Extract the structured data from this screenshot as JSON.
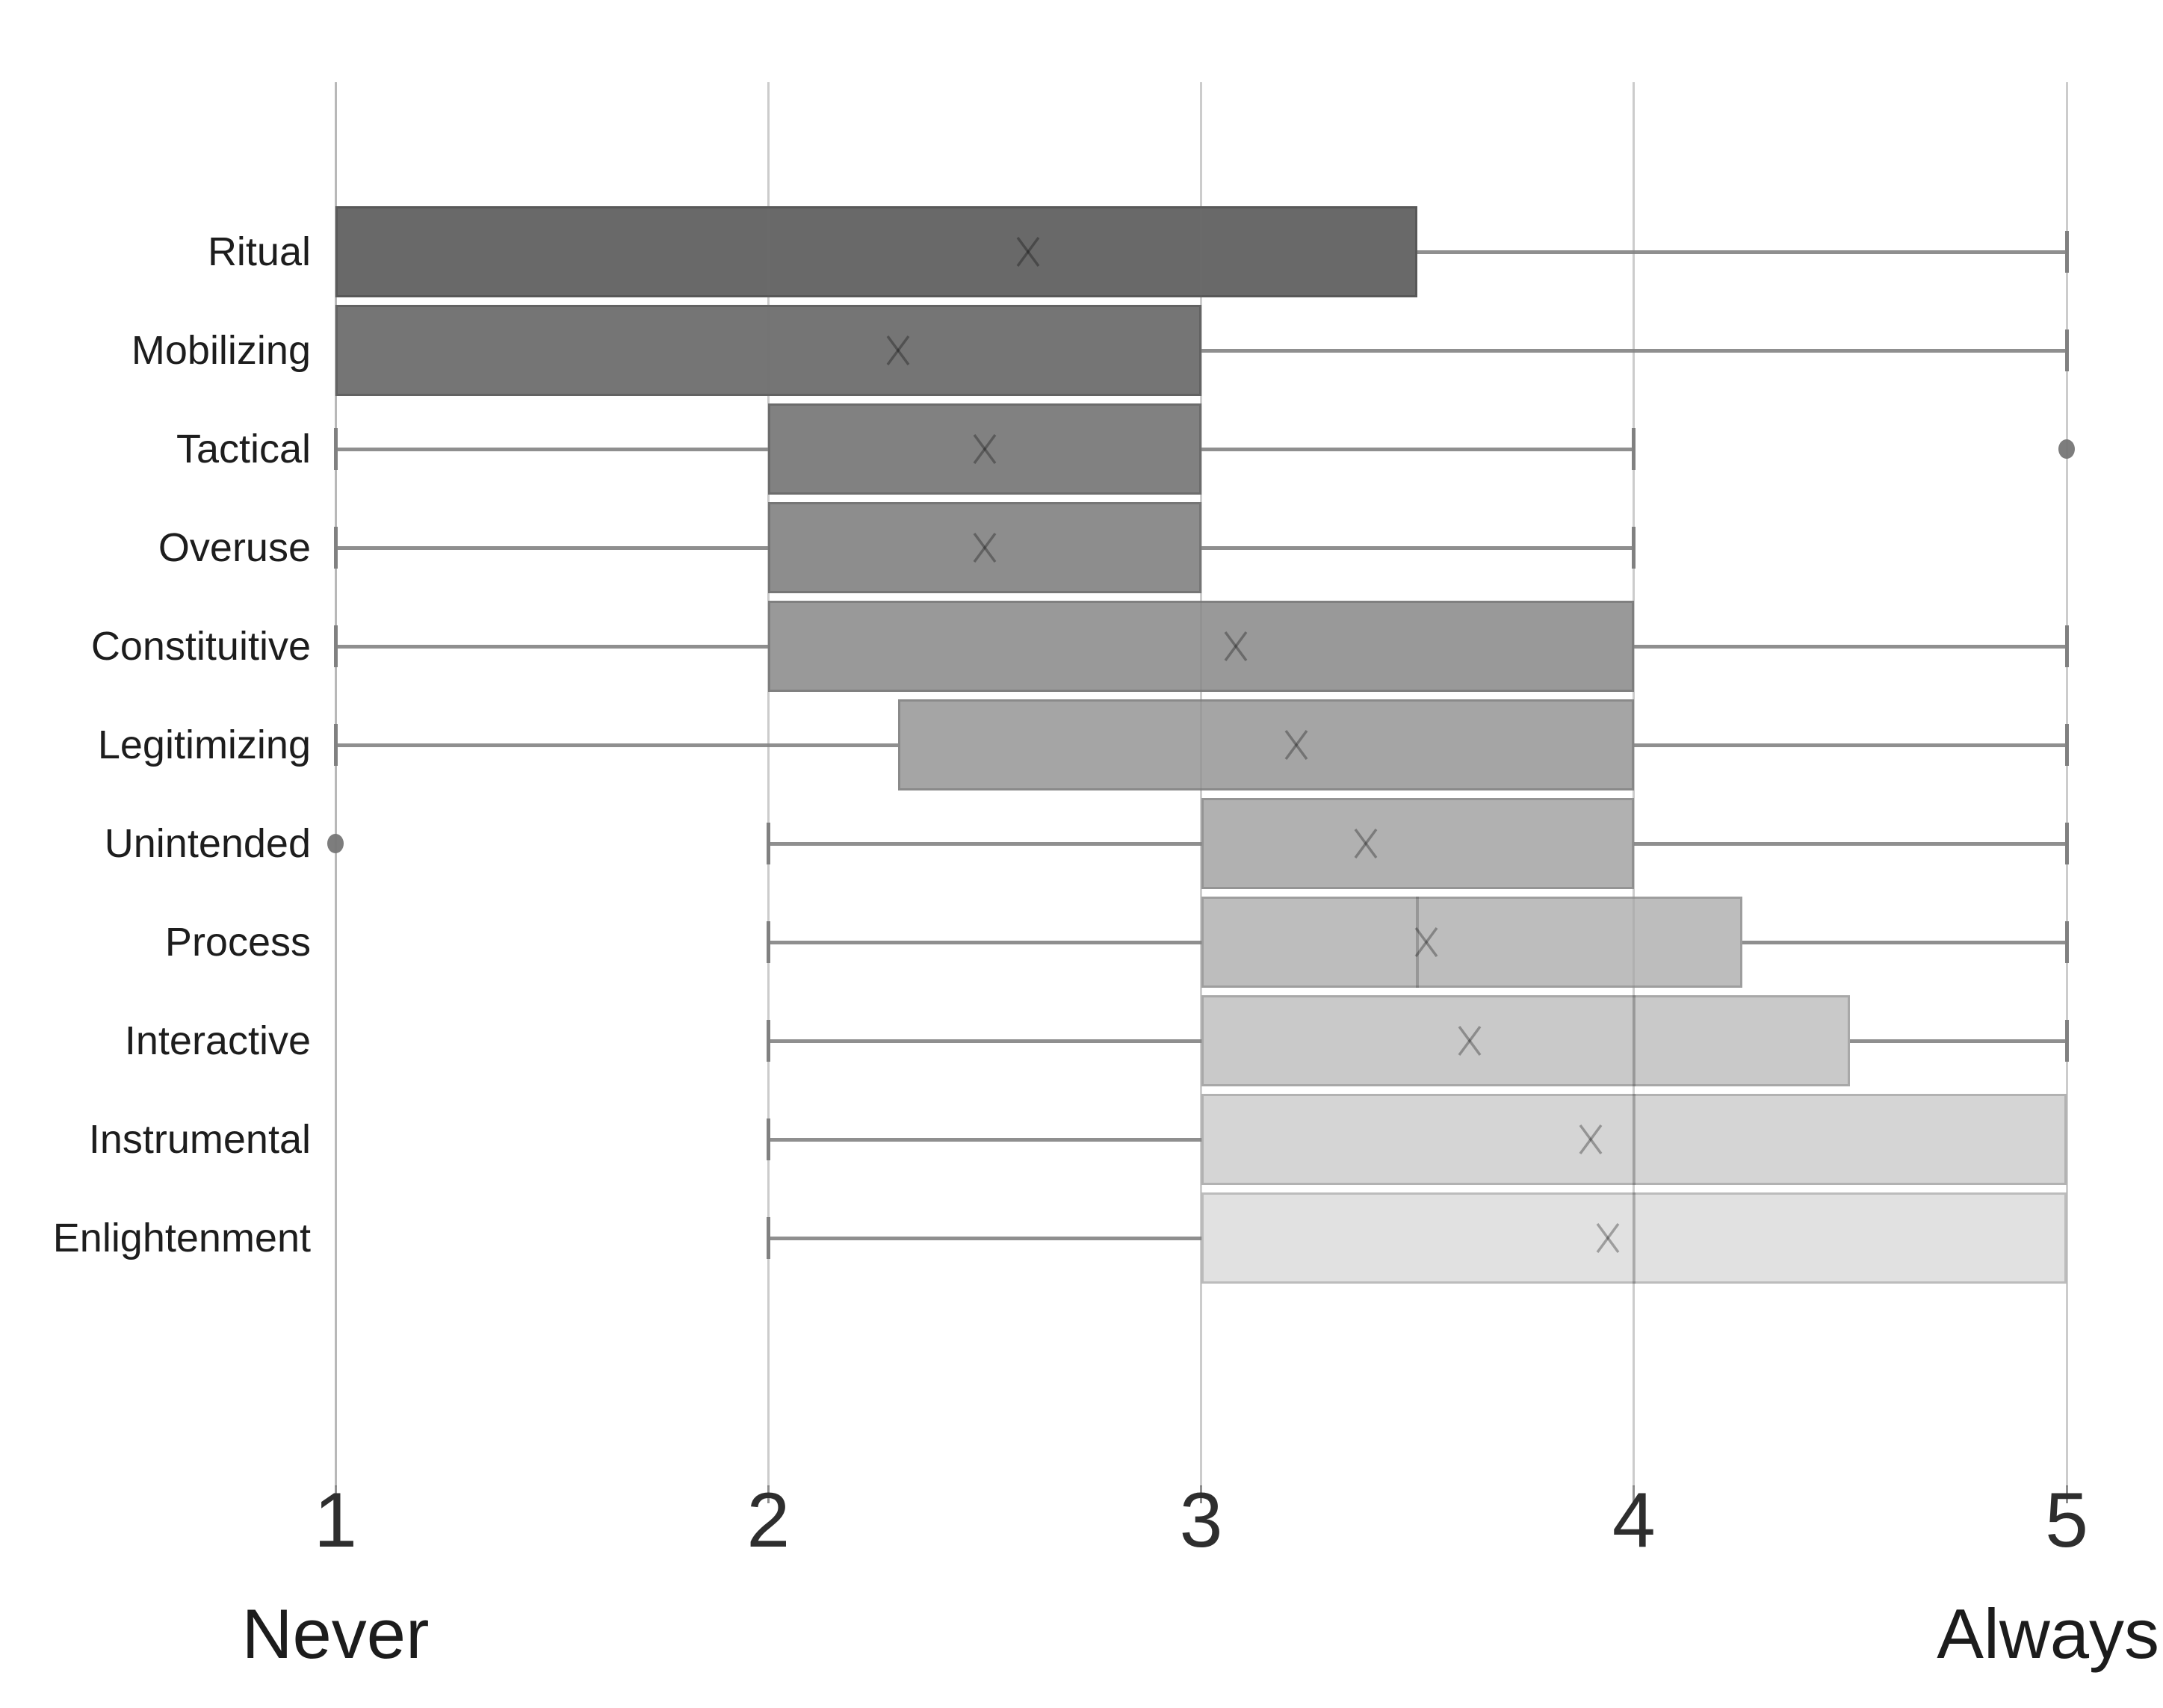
{
  "chart_data": {
    "type": "box-whisker-horizontal",
    "title": "",
    "x_axis": {
      "min": 1,
      "max": 5,
      "ticks": [
        "1",
        "2",
        "3",
        "4",
        "5"
      ],
      "label_left": "Never",
      "label_right": "Always",
      "grid": true
    },
    "legend": null,
    "marker_meanings": {
      "x_marker": "mean",
      "vertical_line_in_box": "median",
      "dot": "outlier"
    },
    "colors": {
      "whisker": "#8f8f8f",
      "gridline": "#dedede",
      "axis_line": "#c6c6c6",
      "outlier_dot": "#7d7d7d"
    },
    "categories": [
      {
        "label": "Ritual",
        "whisker_low": 1,
        "q1": 1,
        "median": null,
        "q3": 3.5,
        "whisker_high": 5,
        "mean": 2.6,
        "outliers": [],
        "fill": "#696969"
      },
      {
        "label": "Mobilizing",
        "whisker_low": 1,
        "q1": 1,
        "median": null,
        "q3": 3,
        "whisker_high": 5,
        "mean": 2.3,
        "outliers": [],
        "fill": "#757575"
      },
      {
        "label": "Tactical",
        "whisker_low": 1,
        "q1": 2,
        "median": null,
        "q3": 3,
        "whisker_high": 4,
        "mean": 2.5,
        "outliers": [
          5
        ],
        "fill": "#818181"
      },
      {
        "label": "Overuse",
        "whisker_low": 1,
        "q1": 2,
        "median": null,
        "q3": 3,
        "whisker_high": 4,
        "mean": 2.5,
        "outliers": [],
        "fill": "#8d8d8d"
      },
      {
        "label": "Constituitive",
        "whisker_low": 1,
        "q1": 2,
        "median": null,
        "q3": 4,
        "whisker_high": 5,
        "mean": 3.08,
        "outliers": [],
        "fill": "#999999"
      },
      {
        "label": "Legitimizing",
        "whisker_low": 1,
        "q1": 2.3,
        "median": null,
        "q3": 4,
        "whisker_high": 5,
        "mean": 3.22,
        "outliers": [],
        "fill": "#a5a5a5"
      },
      {
        "label": "Unintended",
        "whisker_low": 2,
        "q1": 3,
        "median": null,
        "q3": 4,
        "whisker_high": 5,
        "mean": 3.38,
        "outliers": [
          1
        ],
        "fill": "#b1b1b1"
      },
      {
        "label": "Process",
        "whisker_low": 2,
        "q1": 3,
        "median": 3.5,
        "q3": 4.25,
        "whisker_high": 5,
        "mean": 3.52,
        "outliers": [],
        "fill": "#bdbdbd"
      },
      {
        "label": "Interactive",
        "whisker_low": 2,
        "q1": 3,
        "median": 4,
        "q3": 4.5,
        "whisker_high": 5,
        "mean": 3.62,
        "outliers": [],
        "fill": "#c9c9c9"
      },
      {
        "label": "Instrumental",
        "whisker_low": 2,
        "q1": 3,
        "median": 4,
        "q3": 5,
        "whisker_high": 5,
        "mean": 3.9,
        "outliers": [],
        "fill": "#d5d5d5"
      },
      {
        "label": "Enlightenment",
        "whisker_low": 2,
        "q1": 3,
        "median": 4,
        "q3": 5,
        "whisker_high": 5,
        "mean": 3.94,
        "outliers": [],
        "fill": "#e1e1e1"
      }
    ]
  }
}
